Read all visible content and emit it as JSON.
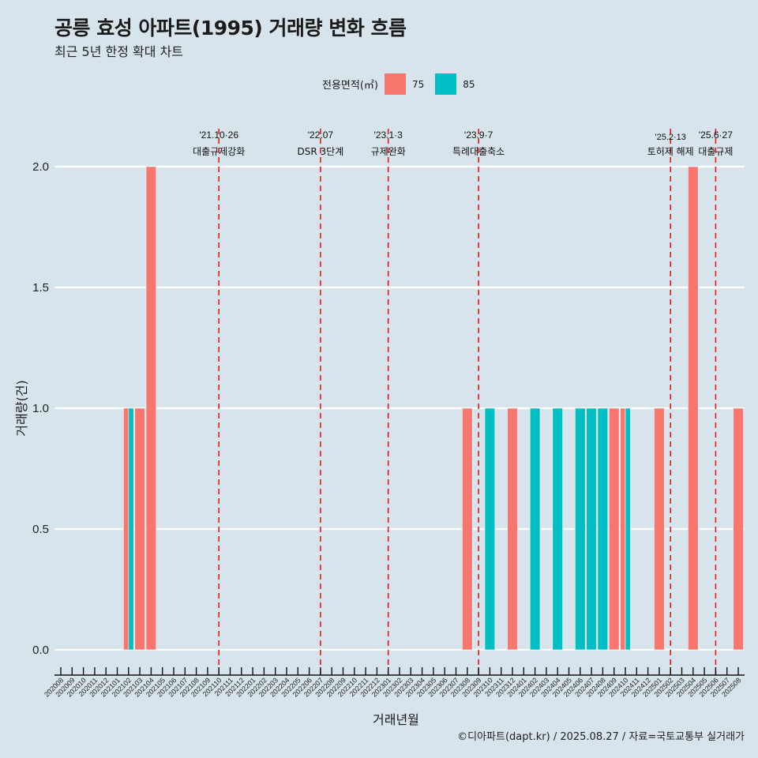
{
  "header": {
    "title": "공릉 효성 아파트(1995) 거래량 변화 흐름",
    "subtitle": "최근 5년 한정 확대 차트"
  },
  "legend": {
    "title": "전용면적(㎡)",
    "items": [
      {
        "label": "75",
        "color": "#F8766D"
      },
      {
        "label": "85",
        "color": "#00BFC4"
      }
    ]
  },
  "caption": "©디아파트(dapt.kr) / 2025.08.27 / 자료=국토교통부 실거래가",
  "chart_data": {
    "type": "bar",
    "title": "공릉 효성 아파트(1995) 거래량 변화 흐름",
    "subtitle": "최근 5년 한정 확대 차트",
    "xlabel": "거래년월",
    "ylabel": "거래량(건)",
    "ylim": [
      0,
      2
    ],
    "yticks": [
      "0.0",
      "0.5",
      "1.0",
      "1.5",
      "2.0"
    ],
    "ytick_values": [
      0,
      0.5,
      1.0,
      1.5,
      2.0
    ],
    "grid": true,
    "legend_position": "top",
    "categories": [
      "202008",
      "202009",
      "202010",
      "202011",
      "202012",
      "202101",
      "202102",
      "202103",
      "202104",
      "202105",
      "202106",
      "202107",
      "202108",
      "202109",
      "202110",
      "202111",
      "202112",
      "202201",
      "202202",
      "202203",
      "202204",
      "202205",
      "202206",
      "202207",
      "202208",
      "202209",
      "202210",
      "202211",
      "202212",
      "202301",
      "202302",
      "202303",
      "202304",
      "202305",
      "202306",
      "202307",
      "202308",
      "202309",
      "202310",
      "202311",
      "202312",
      "202401",
      "202402",
      "202403",
      "202404",
      "202405",
      "202406",
      "202407",
      "202408",
      "202409",
      "202410",
      "202411",
      "202412",
      "202501",
      "202502",
      "202503",
      "202504",
      "202505",
      "202506",
      "202507",
      "202508"
    ],
    "bars": [
      {
        "month": "202102",
        "area": "75",
        "value": 1
      },
      {
        "month": "202102",
        "area": "85",
        "value": 1
      },
      {
        "month": "202103",
        "area": "75",
        "value": 1
      },
      {
        "month": "202104",
        "area": "75",
        "value": 2
      },
      {
        "month": "202308",
        "area": "75",
        "value": 1
      },
      {
        "month": "202310",
        "area": "85",
        "value": 1
      },
      {
        "month": "202312",
        "area": "75",
        "value": 1
      },
      {
        "month": "202402",
        "area": "85",
        "value": 1
      },
      {
        "month": "202404",
        "area": "85",
        "value": 1
      },
      {
        "month": "202406",
        "area": "85",
        "value": 1
      },
      {
        "month": "202407",
        "area": "85",
        "value": 1
      },
      {
        "month": "202408",
        "area": "85",
        "value": 1
      },
      {
        "month": "202409",
        "area": "75",
        "value": 1
      },
      {
        "month": "202410",
        "area": "75",
        "value": 1
      },
      {
        "month": "202410",
        "area": "85",
        "value": 1
      },
      {
        "month": "202501",
        "area": "75",
        "value": 1
      },
      {
        "month": "202504",
        "area": "75",
        "value": 2
      },
      {
        "month": "202508",
        "area": "75",
        "value": 1
      }
    ],
    "annotations": [
      {
        "month": "202110",
        "date": "'21.10·26",
        "label": "대출규제강화"
      },
      {
        "month": "202207",
        "date": "'22.07",
        "label": "DSR 3단계"
      },
      {
        "month": "202301",
        "date": "'23.1·3",
        "label": "규제완화"
      },
      {
        "month": "202309",
        "date": "'23.9·7",
        "label": "특례대출축소"
      },
      {
        "month": "202502",
        "date": "'25.2·13",
        "label": "토허제 해제"
      },
      {
        "month": "202506",
        "date": "'25.6·27",
        "label": "대출규제"
      }
    ],
    "annotation_line_color": "#E41A1C"
  }
}
